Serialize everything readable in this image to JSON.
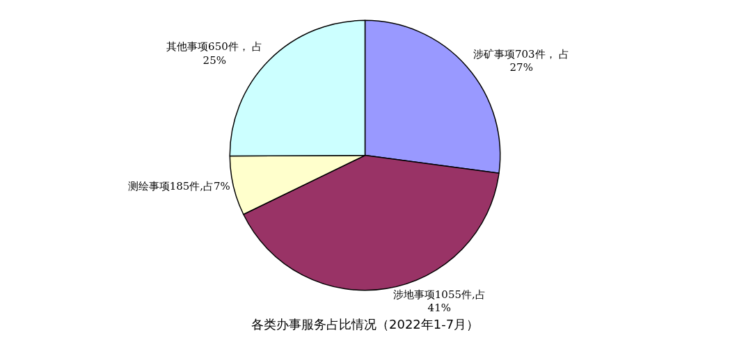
{
  "chart_data": {
    "type": "pie",
    "title": "各类办事服务占比情况（2022年1-7月）",
    "categories": [
      "涉矿事项703件， 占\n27%",
      "涉地事项1055件,占\n41%",
      "测绘事项185件,占7%",
      "其他事项650件， 占\n25%"
    ],
    "values": [
      703,
      1055,
      185,
      650
    ],
    "colors": [
      "#9999ff",
      "#993366",
      "#ffffcc",
      "#ccffff"
    ],
    "legend": false
  }
}
